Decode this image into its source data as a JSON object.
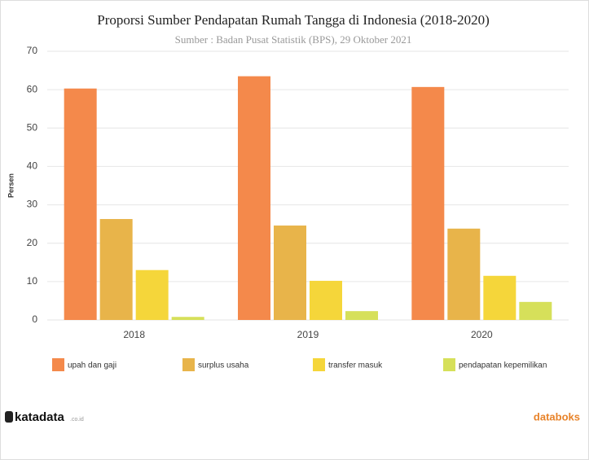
{
  "chart_data": {
    "type": "bar",
    "title": "Proporsi Sumber Pendapatan Rumah Tangga di Indonesia (2018-2020)",
    "subtitle": "Sumber : Badan Pusat Statistik (BPS), 29 Oktober 2021",
    "y_label": "Persen",
    "categories": [
      "2018",
      "2019",
      "2020"
    ],
    "series": [
      {
        "name": "upah dan gaji",
        "color": "#f4894b",
        "values": [
          60.3,
          63.5,
          60.7
        ]
      },
      {
        "name": "surplus usaha",
        "color": "#e8b44a",
        "values": [
          26.3,
          24.6,
          23.8
        ]
      },
      {
        "name": "transfer masuk",
        "color": "#f5d63a",
        "values": [
          13.0,
          10.2,
          11.5
        ]
      },
      {
        "name": "pendapatan kepemilikan",
        "color": "#d6e05a",
        "values": [
          0.8,
          2.3,
          4.7
        ]
      }
    ],
    "ylim": [
      0,
      70
    ],
    "yticks": [
      0,
      10,
      20,
      30,
      40,
      50,
      60,
      70
    ],
    "grid": true
  },
  "footer": {
    "left_logo": "katadata",
    "left_logo_suffix": ".co.id",
    "right_logo": "databoks"
  }
}
